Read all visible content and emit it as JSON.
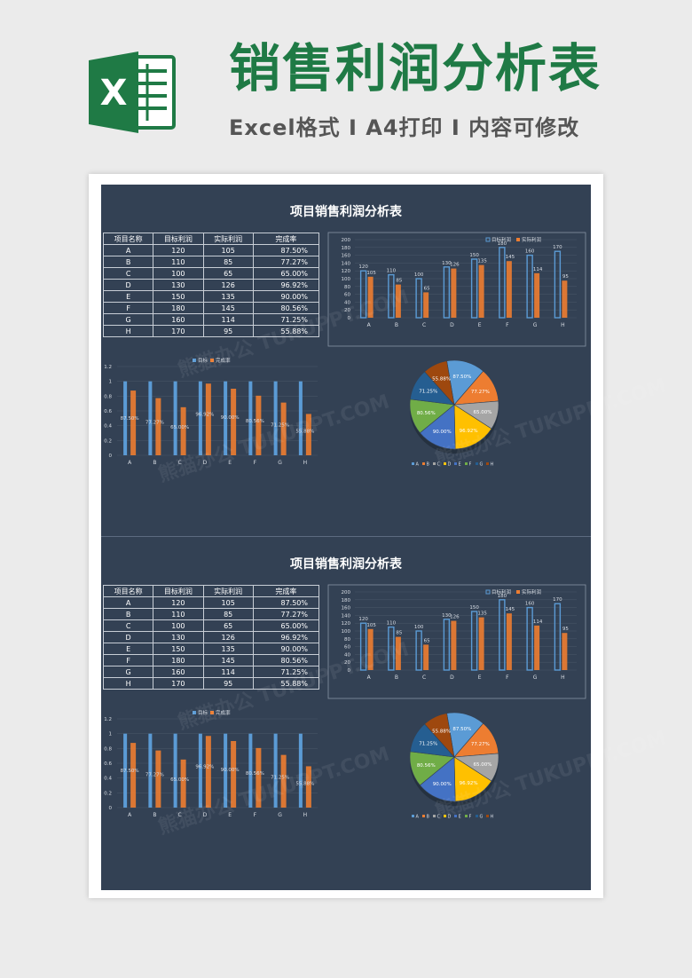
{
  "header": {
    "title": "销售利润分析表",
    "subtitle": "Excel格式 I A4打印 I 内容可修改",
    "logo_letter": "X"
  },
  "sheet": {
    "title": "项目销售利润分析表",
    "table": {
      "columns": [
        "项目名称",
        "目标利润",
        "实际利润",
        "完成率"
      ],
      "rows": [
        [
          "A",
          "120",
          "105",
          "87.50%"
        ],
        [
          "B",
          "110",
          "85",
          "77.27%"
        ],
        [
          "C",
          "100",
          "65",
          "65.00%"
        ],
        [
          "D",
          "130",
          "126",
          "96.92%"
        ],
        [
          "E",
          "150",
          "135",
          "90.00%"
        ],
        [
          "F",
          "180",
          "145",
          "80.56%"
        ],
        [
          "G",
          "160",
          "114",
          "71.25%"
        ],
        [
          "H",
          "170",
          "95",
          "55.88%"
        ]
      ]
    }
  },
  "watermark": "熊猫办公 TUKUPPT.COM",
  "colors": {
    "background": "#334154",
    "series_blue": "#5b9bd5",
    "series_orange": "#ed7d31",
    "brand_green": "#1f7a45",
    "pie": [
      "#5b9bd5",
      "#ed7d31",
      "#a5a5a5",
      "#ffc000",
      "#4472c4",
      "#70ad47",
      "#255e91",
      "#9e480e"
    ]
  },
  "chart_data": [
    {
      "type": "bar",
      "categories": [
        "A",
        "B",
        "C",
        "D",
        "E",
        "F",
        "G",
        "H"
      ],
      "series": [
        {
          "name": "目标利润",
          "values": [
            120,
            110,
            100,
            130,
            150,
            180,
            160,
            170
          ]
        },
        {
          "name": "实际利润",
          "values": [
            105,
            85,
            65,
            126,
            135,
            145,
            114,
            95
          ]
        }
      ],
      "ylim": [
        0,
        200
      ],
      "yticks": [
        "0",
        "20",
        "40",
        "60",
        "80",
        "100",
        "120",
        "140",
        "160",
        "180",
        "200"
      ],
      "legend": "top-right"
    },
    {
      "type": "bar",
      "categories": [
        "A",
        "B",
        "C",
        "D",
        "E",
        "F",
        "G",
        "H"
      ],
      "series": [
        {
          "name": "目标",
          "values": [
            1,
            1,
            1,
            1,
            1,
            1,
            1,
            1
          ]
        },
        {
          "name": "完成率",
          "values": [
            0.875,
            0.7727,
            0.65,
            0.9692,
            0.9,
            0.8056,
            0.7125,
            0.5588
          ]
        }
      ],
      "data_labels": [
        "87.50%",
        "77.27%",
        "65.00%",
        "96.92%",
        "90.00%",
        "80.56%",
        "71.25%",
        "55.88%"
      ],
      "ylim": [
        0,
        1.2
      ],
      "yticks": [
        "0",
        "0.2",
        "0.4",
        "0.6",
        "0.8",
        "1",
        "1.2"
      ],
      "legend": "top-center"
    },
    {
      "type": "pie",
      "categories": [
        "A",
        "B",
        "C",
        "D",
        "E",
        "F",
        "G",
        "H"
      ],
      "values": [
        0.875,
        0.7727,
        0.65,
        0.9692,
        0.9,
        0.8056,
        0.7125,
        0.5588
      ],
      "data_labels": [
        "87.50%",
        "77.27%",
        "65.00%",
        "96.92%",
        "90.00%",
        "80.56%",
        "71.25%",
        "55.88%"
      ],
      "legend": "bottom"
    }
  ]
}
